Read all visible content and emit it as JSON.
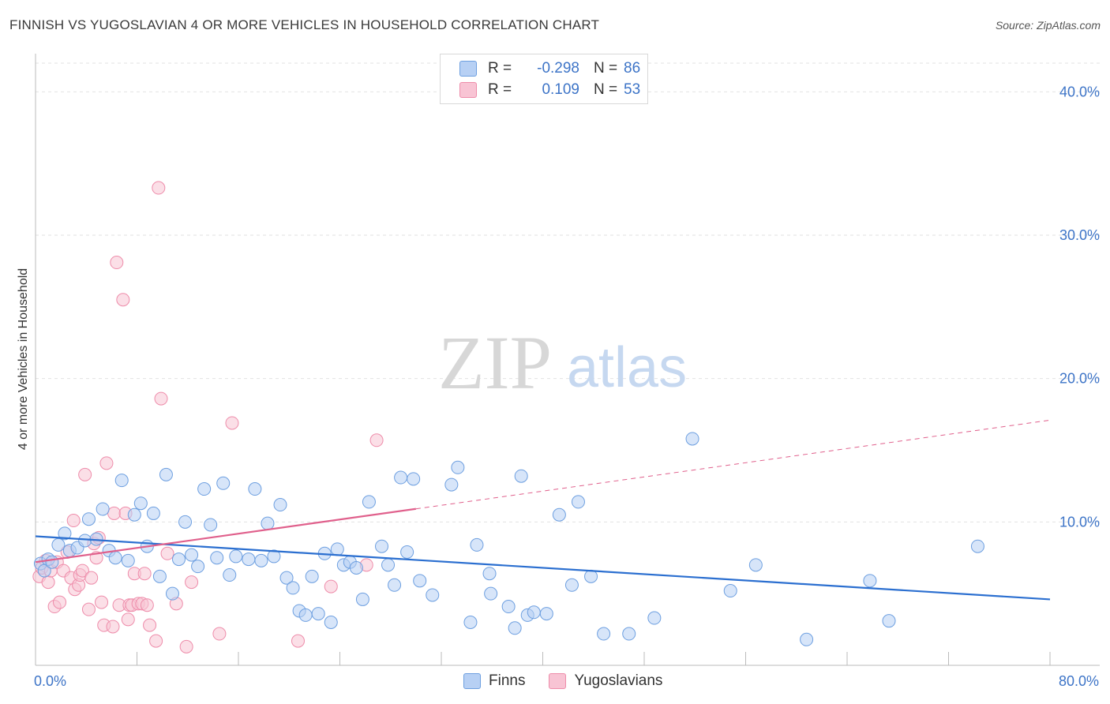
{
  "header": {
    "title": "FINNISH VS YUGOSLAVIAN 4 OR MORE VEHICLES IN HOUSEHOLD CORRELATION CHART",
    "source": "Source: ZipAtlas.com"
  },
  "watermark": {
    "zip": "ZIP",
    "atlas": "atlas"
  },
  "legend": {
    "rows": [
      {
        "r_label": "R =",
        "r_value": "-0.298",
        "n_label": "N =",
        "n_value": "86"
      },
      {
        "r_label": "R =",
        "r_value": "0.109",
        "n_label": "N =",
        "n_value": "53"
      }
    ],
    "series_labels": [
      "Finns",
      "Yugoslavians"
    ]
  },
  "colors": {
    "blue_fill": "#b7d0f4",
    "blue_stroke": "#6d9fe0",
    "blue_line": "#2b6fd0",
    "pink_fill": "#f8c4d4",
    "pink_stroke": "#ee8caa",
    "pink_line": "#e0608c",
    "tick_text": "#3d74c7"
  },
  "chart_data": {
    "type": "scatter",
    "title": "FINNISH VS YUGOSLAVIAN 4 OR MORE VEHICLES IN HOUSEHOLD CORRELATION CHART",
    "xlabel": "",
    "ylabel": "4 or more Vehicles in Household",
    "xlim": [
      0,
      80
    ],
    "ylim": [
      0,
      42
    ],
    "x_tick_labels": [
      "0.0%",
      "80.0%"
    ],
    "y_ticks": [
      10,
      20,
      30,
      40
    ],
    "y_tick_labels": [
      "10.0%",
      "20.0%",
      "30.0%",
      "40.0%"
    ],
    "grid": true,
    "series": [
      {
        "name": "Finns",
        "r": -0.298,
        "n": 86,
        "trend": {
          "x": [
            0,
            80
          ],
          "y": [
            9.0,
            4.6
          ],
          "dashed_from": null
        },
        "points": [
          [
            0.4,
            7.1
          ],
          [
            0.7,
            6.6
          ],
          [
            1.0,
            7.4
          ],
          [
            1.3,
            7.2
          ],
          [
            1.8,
            8.4
          ],
          [
            2.3,
            9.2
          ],
          [
            2.7,
            8.0
          ],
          [
            3.3,
            8.2
          ],
          [
            3.9,
            8.7
          ],
          [
            4.2,
            10.2
          ],
          [
            4.8,
            8.8
          ],
          [
            5.3,
            10.9
          ],
          [
            5.8,
            8.0
          ],
          [
            6.3,
            7.5
          ],
          [
            6.8,
            12.9
          ],
          [
            7.3,
            7.3
          ],
          [
            7.8,
            10.5
          ],
          [
            8.3,
            11.3
          ],
          [
            8.8,
            8.3
          ],
          [
            9.3,
            10.6
          ],
          [
            9.8,
            6.2
          ],
          [
            10.3,
            13.3
          ],
          [
            10.8,
            5.0
          ],
          [
            11.3,
            7.4
          ],
          [
            11.8,
            10.0
          ],
          [
            12.3,
            7.7
          ],
          [
            12.8,
            6.9
          ],
          [
            13.3,
            12.3
          ],
          [
            13.8,
            9.8
          ],
          [
            14.3,
            7.5
          ],
          [
            14.8,
            12.7
          ],
          [
            15.3,
            6.3
          ],
          [
            15.8,
            7.6
          ],
          [
            16.8,
            7.4
          ],
          [
            17.3,
            12.3
          ],
          [
            17.8,
            7.3
          ],
          [
            18.3,
            9.9
          ],
          [
            18.8,
            7.6
          ],
          [
            19.3,
            11.2
          ],
          [
            19.8,
            6.1
          ],
          [
            20.3,
            5.4
          ],
          [
            20.8,
            3.8
          ],
          [
            21.3,
            3.5
          ],
          [
            21.8,
            6.2
          ],
          [
            22.3,
            3.6
          ],
          [
            22.8,
            7.8
          ],
          [
            23.3,
            3.0
          ],
          [
            23.8,
            8.1
          ],
          [
            24.3,
            7.0
          ],
          [
            24.8,
            7.2
          ],
          [
            25.3,
            6.8
          ],
          [
            25.8,
            4.6
          ],
          [
            26.3,
            11.4
          ],
          [
            27.3,
            8.3
          ],
          [
            27.8,
            7.0
          ],
          [
            28.3,
            5.6
          ],
          [
            28.8,
            13.1
          ],
          [
            29.3,
            7.9
          ],
          [
            29.8,
            13.0
          ],
          [
            30.3,
            5.9
          ],
          [
            31.3,
            4.9
          ],
          [
            32.8,
            12.6
          ],
          [
            33.3,
            13.8
          ],
          [
            34.3,
            3.0
          ],
          [
            34.8,
            8.4
          ],
          [
            35.8,
            6.4
          ],
          [
            35.9,
            5.0
          ],
          [
            37.3,
            4.1
          ],
          [
            37.8,
            2.6
          ],
          [
            38.3,
            13.2
          ],
          [
            38.8,
            3.5
          ],
          [
            39.3,
            3.7
          ],
          [
            40.3,
            3.6
          ],
          [
            41.3,
            10.5
          ],
          [
            42.3,
            5.6
          ],
          [
            42.8,
            11.4
          ],
          [
            43.8,
            6.2
          ],
          [
            44.8,
            2.2
          ],
          [
            46.8,
            2.2
          ],
          [
            48.8,
            3.3
          ],
          [
            51.8,
            15.8
          ],
          [
            54.8,
            5.2
          ],
          [
            56.8,
            7.0
          ],
          [
            60.8,
            1.8
          ],
          [
            65.8,
            5.9
          ],
          [
            67.3,
            3.1
          ],
          [
            74.3,
            8.3
          ]
        ]
      },
      {
        "name": "Yugoslavians",
        "r": 0.109,
        "n": 53,
        "trend": {
          "x": [
            0,
            80
          ],
          "y": [
            7.2,
            17.1
          ],
          "solid_until_x": 30
        },
        "points": [
          [
            0.3,
            6.2
          ],
          [
            0.5,
            6.8
          ],
          [
            0.8,
            7.3
          ],
          [
            1.0,
            5.8
          ],
          [
            1.2,
            6.6
          ],
          [
            1.5,
            4.1
          ],
          [
            1.7,
            7.2
          ],
          [
            1.9,
            4.4
          ],
          [
            2.2,
            6.6
          ],
          [
            2.5,
            7.9
          ],
          [
            2.8,
            6.1
          ],
          [
            3.0,
            10.1
          ],
          [
            3.1,
            5.3
          ],
          [
            3.4,
            5.6
          ],
          [
            3.5,
            6.3
          ],
          [
            3.7,
            6.6
          ],
          [
            3.9,
            13.3
          ],
          [
            4.2,
            3.9
          ],
          [
            4.4,
            6.1
          ],
          [
            4.6,
            8.5
          ],
          [
            4.8,
            7.5
          ],
          [
            5.0,
            8.9
          ],
          [
            5.2,
            4.4
          ],
          [
            5.4,
            2.8
          ],
          [
            5.6,
            14.1
          ],
          [
            6.1,
            2.7
          ],
          [
            6.2,
            10.6
          ],
          [
            6.4,
            28.1
          ],
          [
            6.6,
            4.2
          ],
          [
            6.9,
            25.5
          ],
          [
            7.1,
            10.6
          ],
          [
            7.3,
            3.2
          ],
          [
            7.4,
            4.2
          ],
          [
            7.6,
            4.2
          ],
          [
            7.8,
            6.4
          ],
          [
            8.1,
            4.3
          ],
          [
            8.4,
            4.3
          ],
          [
            8.6,
            6.4
          ],
          [
            8.8,
            4.2
          ],
          [
            9.0,
            2.8
          ],
          [
            9.5,
            1.7
          ],
          [
            9.7,
            33.3
          ],
          [
            9.9,
            18.6
          ],
          [
            10.4,
            7.8
          ],
          [
            11.1,
            4.3
          ],
          [
            11.9,
            1.3
          ],
          [
            12.3,
            5.8
          ],
          [
            14.5,
            2.2
          ],
          [
            15.5,
            16.9
          ],
          [
            20.7,
            1.7
          ],
          [
            23.3,
            5.5
          ],
          [
            26.1,
            7.0
          ],
          [
            26.9,
            15.7
          ]
        ]
      }
    ]
  }
}
